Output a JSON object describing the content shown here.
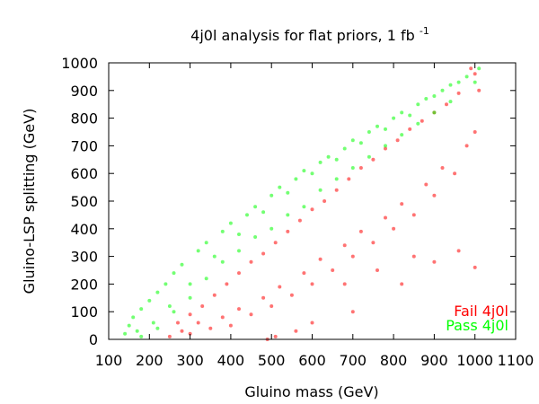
{
  "chart_data": {
    "type": "scatter",
    "title": "4j0l analysis for flat priors, 1 fb",
    "title_superscript": "-1",
    "xlabel": "Gluino mass (GeV)",
    "ylabel": "Gluino-LSP splitting (GeV)",
    "xlim": [
      100,
      1100
    ],
    "ylim": [
      0,
      1000
    ],
    "xticks": [
      "100",
      "200",
      "300",
      "400",
      "500",
      "600",
      "700",
      "800",
      "900",
      "1000",
      "1100"
    ],
    "yticks": [
      "0",
      "100",
      "200",
      "300",
      "400",
      "500",
      "600",
      "700",
      "800",
      "900",
      "1000"
    ],
    "grid": false,
    "legend_placement": "bottom-right",
    "series": [
      {
        "name": "Fail 4j0l",
        "color": "#ff0000",
        "points": [
          [
            250,
            10
          ],
          [
            280,
            30
          ],
          [
            300,
            20
          ],
          [
            320,
            60
          ],
          [
            350,
            40
          ],
          [
            380,
            80
          ],
          [
            400,
            50
          ],
          [
            420,
            110
          ],
          [
            450,
            90
          ],
          [
            480,
            150
          ],
          [
            500,
            120
          ],
          [
            520,
            190
          ],
          [
            550,
            160
          ],
          [
            580,
            240
          ],
          [
            600,
            200
          ],
          [
            620,
            290
          ],
          [
            650,
            250
          ],
          [
            680,
            340
          ],
          [
            700,
            300
          ],
          [
            720,
            390
          ],
          [
            750,
            350
          ],
          [
            780,
            440
          ],
          [
            800,
            400
          ],
          [
            820,
            490
          ],
          [
            850,
            450
          ],
          [
            880,
            560
          ],
          [
            900,
            520
          ],
          [
            920,
            620
          ],
          [
            950,
            600
          ],
          [
            980,
            700
          ],
          [
            1000,
            750
          ],
          [
            1010,
            900
          ],
          [
            1000,
            960
          ],
          [
            990,
            980
          ],
          [
            960,
            890
          ],
          [
            930,
            850
          ],
          [
            900,
            820
          ],
          [
            870,
            790
          ],
          [
            840,
            760
          ],
          [
            810,
            720
          ],
          [
            780,
            690
          ],
          [
            750,
            650
          ],
          [
            720,
            620
          ],
          [
            690,
            580
          ],
          [
            660,
            540
          ],
          [
            630,
            500
          ],
          [
            600,
            470
          ],
          [
            570,
            430
          ],
          [
            540,
            390
          ],
          [
            510,
            350
          ],
          [
            480,
            310
          ],
          [
            450,
            280
          ],
          [
            420,
            240
          ],
          [
            390,
            200
          ],
          [
            360,
            160
          ],
          [
            330,
            120
          ],
          [
            300,
            90
          ],
          [
            270,
            60
          ],
          [
            960,
            320
          ],
          [
            1000,
            260
          ],
          [
            850,
            300
          ],
          [
            760,
            250
          ],
          [
            680,
            200
          ],
          [
            560,
            30
          ],
          [
            490,
            0
          ],
          [
            510,
            10
          ],
          [
            600,
            60
          ],
          [
            700,
            100
          ],
          [
            820,
            200
          ],
          [
            900,
            280
          ]
        ]
      },
      {
        "name": "Pass 4j0l",
        "color": "#00ff00",
        "points": [
          [
            140,
            20
          ],
          [
            150,
            50
          ],
          [
            160,
            80
          ],
          [
            170,
            30
          ],
          [
            180,
            110
          ],
          [
            200,
            140
          ],
          [
            210,
            60
          ],
          [
            220,
            170
          ],
          [
            240,
            200
          ],
          [
            250,
            120
          ],
          [
            260,
            240
          ],
          [
            280,
            270
          ],
          [
            300,
            200
          ],
          [
            320,
            320
          ],
          [
            340,
            350
          ],
          [
            360,
            300
          ],
          [
            380,
            390
          ],
          [
            400,
            420
          ],
          [
            420,
            380
          ],
          [
            440,
            450
          ],
          [
            460,
            480
          ],
          [
            480,
            460
          ],
          [
            500,
            520
          ],
          [
            520,
            550
          ],
          [
            540,
            530
          ],
          [
            560,
            580
          ],
          [
            580,
            610
          ],
          [
            600,
            600
          ],
          [
            620,
            640
          ],
          [
            640,
            660
          ],
          [
            660,
            650
          ],
          [
            680,
            690
          ],
          [
            700,
            720
          ],
          [
            720,
            710
          ],
          [
            740,
            750
          ],
          [
            760,
            770
          ],
          [
            780,
            760
          ],
          [
            800,
            800
          ],
          [
            820,
            820
          ],
          [
            840,
            810
          ],
          [
            860,
            850
          ],
          [
            880,
            870
          ],
          [
            900,
            880
          ],
          [
            920,
            900
          ],
          [
            940,
            920
          ],
          [
            960,
            930
          ],
          [
            980,
            950
          ],
          [
            1000,
            930
          ],
          [
            1010,
            980
          ],
          [
            180,
            10
          ],
          [
            220,
            40
          ],
          [
            260,
            100
          ],
          [
            300,
            150
          ],
          [
            340,
            220
          ],
          [
            380,
            280
          ],
          [
            420,
            320
          ],
          [
            460,
            370
          ],
          [
            500,
            400
          ],
          [
            540,
            450
          ],
          [
            580,
            480
          ],
          [
            620,
            540
          ],
          [
            660,
            580
          ],
          [
            700,
            620
          ],
          [
            740,
            660
          ],
          [
            780,
            700
          ],
          [
            820,
            740
          ],
          [
            860,
            780
          ],
          [
            900,
            820
          ],
          [
            940,
            860
          ]
        ]
      }
    ]
  }
}
